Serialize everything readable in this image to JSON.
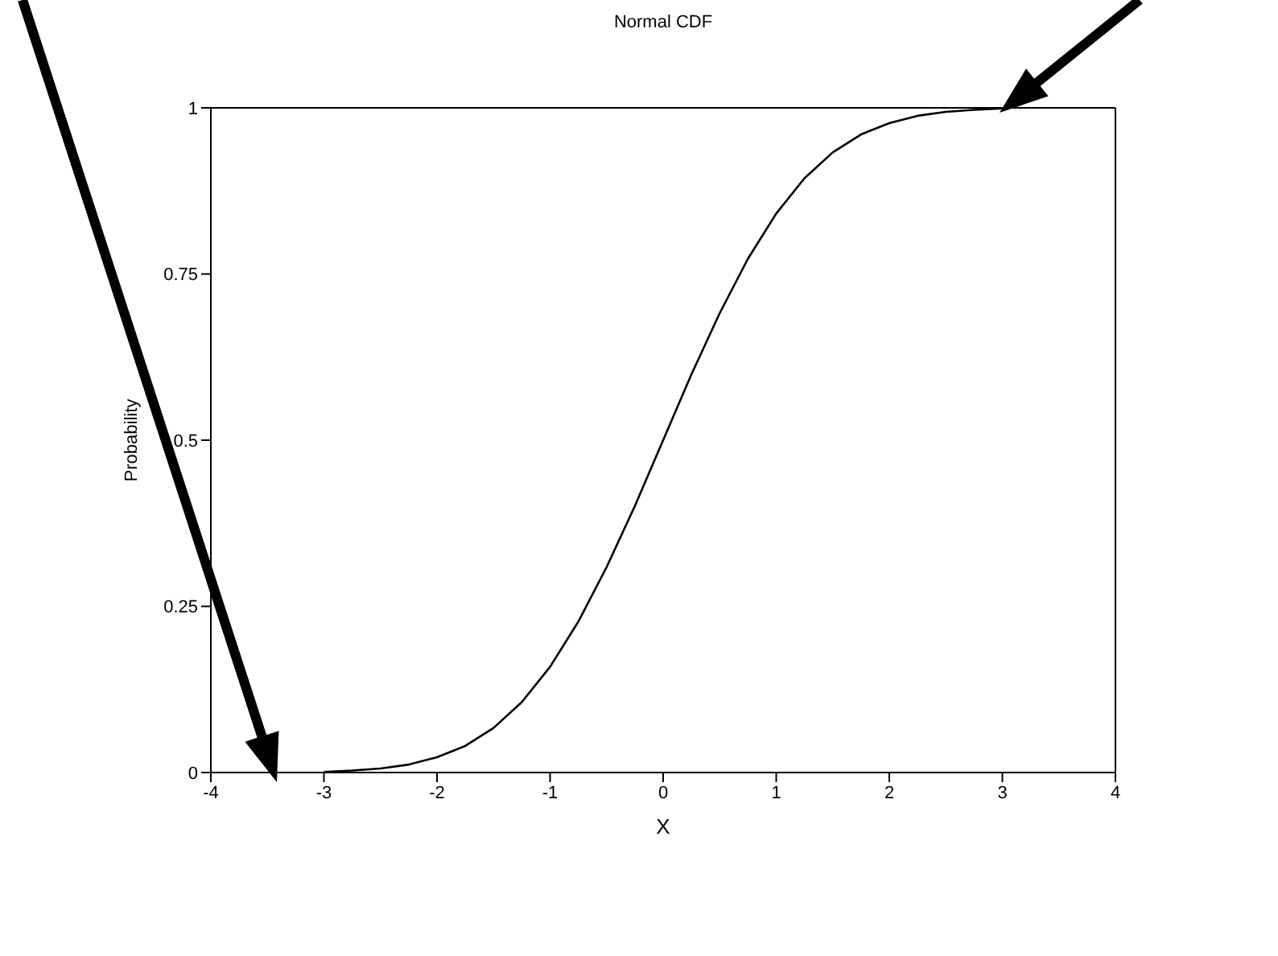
{
  "chart_data": {
    "type": "line",
    "title": "Normal CDF",
    "xlabel": "X",
    "ylabel": "Probability",
    "x": [
      -3,
      -2.75,
      -2.5,
      -2.25,
      -2,
      -1.75,
      -1.5,
      -1.25,
      -1,
      -0.75,
      -0.5,
      -0.25,
      0,
      0.25,
      0.5,
      0.75,
      1,
      1.25,
      1.5,
      1.75,
      2,
      2.25,
      2.5,
      2.75,
      3
    ],
    "series": [
      {
        "color": "#000000",
        "values": [
          0.001,
          0.003,
          0.006,
          0.012,
          0.023,
          0.04,
          0.067,
          0.106,
          0.159,
          0.227,
          0.309,
          0.401,
          0.5,
          0.599,
          0.691,
          0.773,
          0.841,
          0.894,
          0.933,
          0.96,
          0.977,
          0.988,
          0.994,
          0.997,
          0.999
        ]
      }
    ],
    "xlim": [
      -4,
      4
    ],
    "xticks": [
      -4,
      -3,
      -2,
      -1,
      0,
      1,
      2,
      3,
      4
    ],
    "ylim": [
      0,
      1
    ],
    "yticks": [
      0,
      0.25,
      0.5,
      0.75,
      1
    ],
    "grid": false,
    "legend": false,
    "marker": "none",
    "line_style": "solid"
  }
}
